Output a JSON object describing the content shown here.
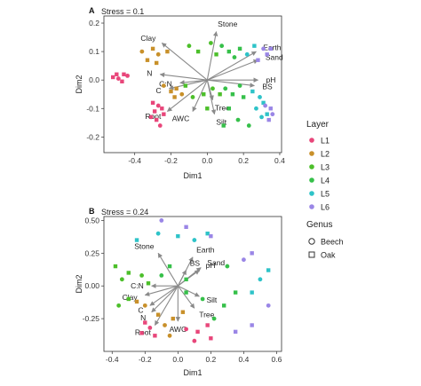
{
  "figure": {
    "legend_layer": {
      "title": "Layer",
      "items": [
        {
          "label": "L1",
          "color": "#e8467a"
        },
        {
          "label": "L2",
          "color": "#c8902a"
        },
        {
          "label": "L3",
          "color": "#4cbf2a"
        },
        {
          "label": "L4",
          "color": "#36c04a"
        },
        {
          "label": "L5",
          "color": "#2ec3c8"
        },
        {
          "label": "L6",
          "color": "#9a86e6"
        }
      ]
    },
    "legend_genus": {
      "title": "Genus",
      "items": [
        {
          "label": "Beech",
          "shape": "circle"
        },
        {
          "label": "Oak",
          "shape": "square"
        }
      ]
    }
  },
  "chart_data": [
    {
      "type": "scatter",
      "panel_label": "A",
      "annotation": "Stress = 0.1",
      "xlabel": "Dim1",
      "ylabel": "Dim2",
      "xlim": [
        -0.57,
        0.41
      ],
      "ylim": [
        -0.255,
        0.225
      ],
      "xticks": [
        -0.4,
        -0.2,
        0.0,
        0.2,
        0.4
      ],
      "xtick_labels": [
        "-0.4",
        "-0.2",
        "0.0",
        "0.2",
        "0.4"
      ],
      "yticks": [
        -0.2,
        -0.1,
        0.0,
        0.1,
        0.2
      ],
      "ytick_labels": [
        "-0.2",
        "-0.1",
        "0.0",
        "0.1",
        "0.2"
      ],
      "grid": false,
      "vector_origin": [
        0.0,
        0.0
      ],
      "vectors": [
        {
          "label": "Clay",
          "x": -0.25,
          "y": 0.13
        },
        {
          "label": "Stone",
          "x": 0.05,
          "y": 0.17
        },
        {
          "label": "Earth",
          "x": 0.27,
          "y": 0.1
        },
        {
          "label": "Sand",
          "x": 0.28,
          "y": 0.07
        },
        {
          "label": "N",
          "x": -0.26,
          "y": 0.02
        },
        {
          "label": "C:N",
          "x": -0.15,
          "y": -0.01
        },
        {
          "label": "C",
          "x": -0.21,
          "y": -0.03
        },
        {
          "label": "pH",
          "x": 0.28,
          "y": 0.0
        },
        {
          "label": "BS",
          "x": 0.26,
          "y": -0.02
        },
        {
          "label": "Tree",
          "x": 0.03,
          "y": -0.07
        },
        {
          "label": "AWC",
          "x": -0.08,
          "y": -0.11
        },
        {
          "label": "Silt",
          "x": 0.04,
          "y": -0.12
        },
        {
          "label": "Root",
          "x": -0.22,
          "y": -0.11
        }
      ],
      "series": [
        {
          "name": "L1",
          "points": [
            {
              "x": -0.52,
              "y": 0.01,
              "genus": "Oak"
            },
            {
              "x": -0.5,
              "y": 0.02,
              "genus": "Oak"
            },
            {
              "x": -0.49,
              "y": 0.005,
              "genus": "Beech"
            },
            {
              "x": -0.46,
              "y": 0.02,
              "genus": "Oak"
            },
            {
              "x": -0.47,
              "y": -0.005,
              "genus": "Oak"
            },
            {
              "x": -0.44,
              "y": 0.015,
              "genus": "Beech"
            },
            {
              "x": -0.3,
              "y": -0.08,
              "genus": "Oak"
            },
            {
              "x": -0.27,
              "y": -0.09,
              "genus": "Beech"
            },
            {
              "x": -0.29,
              "y": -0.11,
              "genus": "Oak"
            },
            {
              "x": -0.25,
              "y": -0.1,
              "genus": "Oak"
            },
            {
              "x": -0.31,
              "y": -0.13,
              "genus": "Beech"
            },
            {
              "x": -0.28,
              "y": -0.14,
              "genus": "Oak"
            },
            {
              "x": -0.24,
              "y": -0.12,
              "genus": "Oak"
            },
            {
              "x": -0.26,
              "y": -0.16,
              "genus": "Beech"
            }
          ]
        },
        {
          "name": "L2",
          "points": [
            {
              "x": -0.36,
              "y": 0.1,
              "genus": "Beech"
            },
            {
              "x": -0.33,
              "y": 0.07,
              "genus": "Oak"
            },
            {
              "x": -0.3,
              "y": 0.11,
              "genus": "Oak"
            },
            {
              "x": -0.27,
              "y": 0.09,
              "genus": "Beech"
            },
            {
              "x": -0.28,
              "y": 0.06,
              "genus": "Oak"
            },
            {
              "x": -0.22,
              "y": 0.1,
              "genus": "Oak"
            },
            {
              "x": -0.24,
              "y": -0.02,
              "genus": "Beech"
            },
            {
              "x": -0.2,
              "y": -0.04,
              "genus": "Oak"
            },
            {
              "x": -0.17,
              "y": -0.03,
              "genus": "Oak"
            },
            {
              "x": -0.14,
              "y": -0.05,
              "genus": "Beech"
            },
            {
              "x": -0.18,
              "y": -0.06,
              "genus": "Oak"
            }
          ]
        },
        {
          "name": "L3",
          "points": [
            {
              "x": -0.1,
              "y": 0.12,
              "genus": "Beech"
            },
            {
              "x": -0.05,
              "y": 0.1,
              "genus": "Oak"
            },
            {
              "x": 0.02,
              "y": 0.13,
              "genus": "Beech"
            },
            {
              "x": 0.05,
              "y": 0.09,
              "genus": "Oak"
            },
            {
              "x": -0.12,
              "y": -0.02,
              "genus": "Oak"
            },
            {
              "x": -0.08,
              "y": -0.06,
              "genus": "Beech"
            },
            {
              "x": -0.02,
              "y": -0.05,
              "genus": "Oak"
            },
            {
              "x": 0.03,
              "y": -0.03,
              "genus": "Beech"
            },
            {
              "x": 0.07,
              "y": -0.05,
              "genus": "Oak"
            },
            {
              "x": 0.0,
              "y": -0.1,
              "genus": "Oak"
            }
          ]
        },
        {
          "name": "L4",
          "points": [
            {
              "x": 0.08,
              "y": 0.12,
              "genus": "Beech"
            },
            {
              "x": 0.12,
              "y": 0.1,
              "genus": "Oak"
            },
            {
              "x": 0.15,
              "y": 0.08,
              "genus": "Beech"
            },
            {
              "x": 0.18,
              "y": 0.11,
              "genus": "Oak"
            },
            {
              "x": 0.1,
              "y": -0.03,
              "genus": "Beech"
            },
            {
              "x": 0.14,
              "y": -0.05,
              "genus": "Oak"
            },
            {
              "x": 0.18,
              "y": -0.02,
              "genus": "Beech"
            },
            {
              "x": 0.2,
              "y": -0.06,
              "genus": "Oak"
            },
            {
              "x": 0.12,
              "y": -0.1,
              "genus": "Oak"
            },
            {
              "x": 0.17,
              "y": -0.14,
              "genus": "Beech"
            },
            {
              "x": 0.09,
              "y": -0.16,
              "genus": "Oak"
            },
            {
              "x": 0.23,
              "y": -0.16,
              "genus": "Beech"
            }
          ]
        },
        {
          "name": "L5",
          "points": [
            {
              "x": 0.22,
              "y": 0.09,
              "genus": "Beech"
            },
            {
              "x": 0.26,
              "y": 0.12,
              "genus": "Oak"
            },
            {
              "x": 0.25,
              "y": -0.04,
              "genus": "Oak"
            },
            {
              "x": 0.29,
              "y": -0.06,
              "genus": "Beech"
            },
            {
              "x": 0.31,
              "y": -0.08,
              "genus": "Oak"
            },
            {
              "x": 0.27,
              "y": -0.1,
              "genus": "Beech"
            },
            {
              "x": 0.33,
              "y": -0.12,
              "genus": "Oak"
            },
            {
              "x": 0.3,
              "y": -0.13,
              "genus": "Beech"
            }
          ]
        },
        {
          "name": "L6",
          "points": [
            {
              "x": 0.28,
              "y": 0.07,
              "genus": "Oak"
            },
            {
              "x": 0.31,
              "y": 0.11,
              "genus": "Beech"
            },
            {
              "x": 0.33,
              "y": 0.09,
              "genus": "Oak"
            },
            {
              "x": 0.35,
              "y": 0.11,
              "genus": "Oak"
            },
            {
              "x": 0.32,
              "y": -0.09,
              "genus": "Beech"
            },
            {
              "x": 0.35,
              "y": -0.1,
              "genus": "Oak"
            },
            {
              "x": 0.36,
              "y": -0.12,
              "genus": "Beech"
            },
            {
              "x": 0.34,
              "y": -0.14,
              "genus": "Oak"
            }
          ]
        }
      ]
    },
    {
      "type": "scatter",
      "panel_label": "B",
      "annotation": "Stress = 0.24",
      "xlabel": "Dim1",
      "ylabel": "Dim2",
      "xlim": [
        -0.45,
        0.63
      ],
      "ylim": [
        -0.5,
        0.53
      ],
      "xticks": [
        -0.4,
        -0.2,
        0.0,
        0.2,
        0.4,
        0.6
      ],
      "xtick_labels": [
        "-0.4",
        "-0.2",
        "0.0",
        "0.2",
        "0.4",
        "0.6"
      ],
      "yticks": [
        -0.25,
        0.0,
        0.25,
        0.5
      ],
      "ytick_labels": [
        "-0.25",
        "0.00",
        "0.25",
        "0.50"
      ],
      "grid": false,
      "vector_origin": [
        0.0,
        0.0
      ],
      "vectors": [
        {
          "label": "Stone",
          "x": -0.12,
          "y": 0.25
        },
        {
          "label": "Earth",
          "x": 0.09,
          "y": 0.22
        },
        {
          "label": "pH",
          "x": 0.13,
          "y": 0.12
        },
        {
          "label": "BS",
          "x": 0.05,
          "y": 0.12
        },
        {
          "label": "Sand",
          "x": 0.14,
          "y": 0.14
        },
        {
          "label": "C:N",
          "x": -0.16,
          "y": 0.0
        },
        {
          "label": "Silt",
          "x": 0.13,
          "y": -0.08
        },
        {
          "label": "Clay",
          "x": -0.2,
          "y": -0.07
        },
        {
          "label": "C",
          "x": -0.17,
          "y": -0.15
        },
        {
          "label": "Tree",
          "x": 0.1,
          "y": -0.17
        },
        {
          "label": "N",
          "x": -0.16,
          "y": -0.2
        },
        {
          "label": "AWC",
          "x": 0.0,
          "y": -0.27
        },
        {
          "label": "Root",
          "x": -0.14,
          "y": -0.3
        }
      ],
      "series": [
        {
          "name": "L1",
          "points": [
            {
              "x": -0.2,
              "y": -0.28,
              "genus": "Oak"
            },
            {
              "x": -0.17,
              "y": -0.32,
              "genus": "Beech"
            },
            {
              "x": -0.22,
              "y": -0.36,
              "genus": "Oak"
            },
            {
              "x": -0.14,
              "y": -0.38,
              "genus": "Oak"
            },
            {
              "x": 0.05,
              "y": -0.33,
              "genus": "Beech"
            },
            {
              "x": 0.12,
              "y": -0.35,
              "genus": "Oak"
            },
            {
              "x": 0.18,
              "y": -0.3,
              "genus": "Oak"
            },
            {
              "x": 0.1,
              "y": -0.42,
              "genus": "Beech"
            },
            {
              "x": 0.2,
              "y": -0.4,
              "genus": "Oak"
            }
          ]
        },
        {
          "name": "L2",
          "points": [
            {
              "x": -0.25,
              "y": -0.12,
              "genus": "Oak"
            },
            {
              "x": -0.2,
              "y": -0.15,
              "genus": "Beech"
            },
            {
              "x": -0.12,
              "y": -0.22,
              "genus": "Oak"
            },
            {
              "x": -0.08,
              "y": -0.3,
              "genus": "Beech"
            },
            {
              "x": -0.03,
              "y": -0.25,
              "genus": "Oak"
            },
            {
              "x": 0.03,
              "y": -0.2,
              "genus": "Oak"
            },
            {
              "x": -0.05,
              "y": -0.38,
              "genus": "Beech"
            }
          ]
        },
        {
          "name": "L3",
          "points": [
            {
              "x": -0.38,
              "y": 0.15,
              "genus": "Oak"
            },
            {
              "x": -0.34,
              "y": 0.05,
              "genus": "Beech"
            },
            {
              "x": -0.3,
              "y": 0.1,
              "genus": "Oak"
            },
            {
              "x": -0.3,
              "y": -0.1,
              "genus": "Oak"
            },
            {
              "x": -0.36,
              "y": -0.15,
              "genus": "Beech"
            },
            {
              "x": -0.22,
              "y": 0.08,
              "genus": "Beech"
            },
            {
              "x": -0.18,
              "y": 0.02,
              "genus": "Oak"
            }
          ]
        },
        {
          "name": "L4",
          "points": [
            {
              "x": -0.1,
              "y": 0.08,
              "genus": "Beech"
            },
            {
              "x": -0.05,
              "y": 0.15,
              "genus": "Oak"
            },
            {
              "x": 0.05,
              "y": 0.05,
              "genus": "Oak"
            },
            {
              "x": 0.3,
              "y": 0.15,
              "genus": "Beech"
            },
            {
              "x": 0.28,
              "y": -0.15,
              "genus": "Oak"
            },
            {
              "x": 0.22,
              "y": -0.25,
              "genus": "Beech"
            },
            {
              "x": 0.35,
              "y": -0.05,
              "genus": "Oak"
            },
            {
              "x": 0.15,
              "y": -0.1,
              "genus": "Beech"
            },
            {
              "x": 0.05,
              "y": -0.05,
              "genus": "Oak"
            }
          ]
        },
        {
          "name": "L5",
          "points": [
            {
              "x": -0.25,
              "y": 0.35,
              "genus": "Oak"
            },
            {
              "x": -0.12,
              "y": 0.4,
              "genus": "Beech"
            },
            {
              "x": 0.0,
              "y": 0.38,
              "genus": "Oak"
            },
            {
              "x": 0.1,
              "y": 0.35,
              "genus": "Beech"
            },
            {
              "x": 0.18,
              "y": 0.4,
              "genus": "Oak"
            },
            {
              "x": 0.5,
              "y": 0.05,
              "genus": "Beech"
            },
            {
              "x": 0.55,
              "y": 0.12,
              "genus": "Oak"
            },
            {
              "x": 0.45,
              "y": -0.05,
              "genus": "Oak"
            }
          ]
        },
        {
          "name": "L6",
          "points": [
            {
              "x": -0.1,
              "y": 0.5,
              "genus": "Beech"
            },
            {
              "x": 0.05,
              "y": 0.45,
              "genus": "Oak"
            },
            {
              "x": 0.2,
              "y": 0.38,
              "genus": "Oak"
            },
            {
              "x": 0.4,
              "y": 0.2,
              "genus": "Beech"
            },
            {
              "x": 0.45,
              "y": 0.25,
              "genus": "Oak"
            },
            {
              "x": 0.55,
              "y": -0.15,
              "genus": "Beech"
            },
            {
              "x": 0.45,
              "y": -0.3,
              "genus": "Oak"
            },
            {
              "x": 0.35,
              "y": -0.35,
              "genus": "Oak"
            }
          ]
        }
      ]
    }
  ]
}
